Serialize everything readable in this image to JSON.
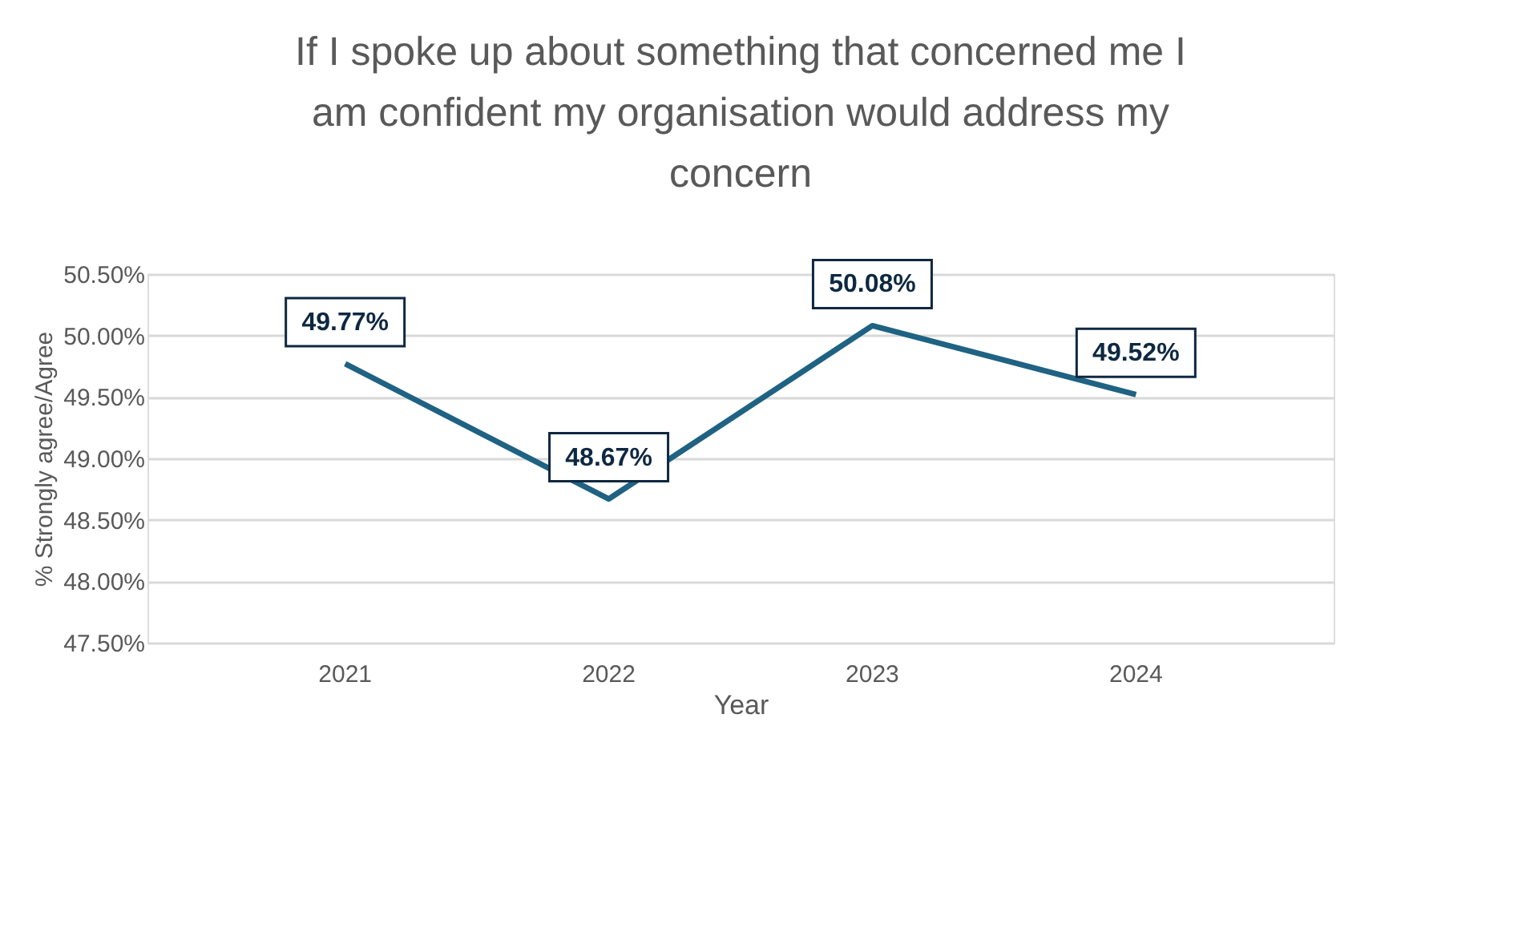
{
  "chart_data": {
    "type": "line",
    "title": "If I spoke up about something that concerned me I am confident my organisation would address my concern",
    "xlabel": "Year",
    "ylabel": "% Strongly agree/Agree",
    "categories": [
      "2021",
      "2022",
      "2023",
      "2024"
    ],
    "series": [
      {
        "color": "#1f6283",
        "values": [
          49.77,
          48.67,
          50.08,
          49.52
        ]
      }
    ],
    "ylim": [
      47.5,
      50.5
    ],
    "yticks": [
      {
        "value": 47.5,
        "label": "47.50%"
      },
      {
        "value": 48,
        "label": "48.00%"
      },
      {
        "value": 48.5,
        "label": "48.50%"
      },
      {
        "value": 49,
        "label": "49.00%"
      },
      {
        "value": 49.5,
        "label": "49.50%"
      },
      {
        "value": 50,
        "label": "50.00%"
      },
      {
        "value": 50.5,
        "label": "50.50%"
      }
    ],
    "value_labels": [
      "49.77%",
      "48.67%",
      "50.08%",
      "49.52%"
    ],
    "grid": "y",
    "marker": "none",
    "line_style": "solid"
  }
}
